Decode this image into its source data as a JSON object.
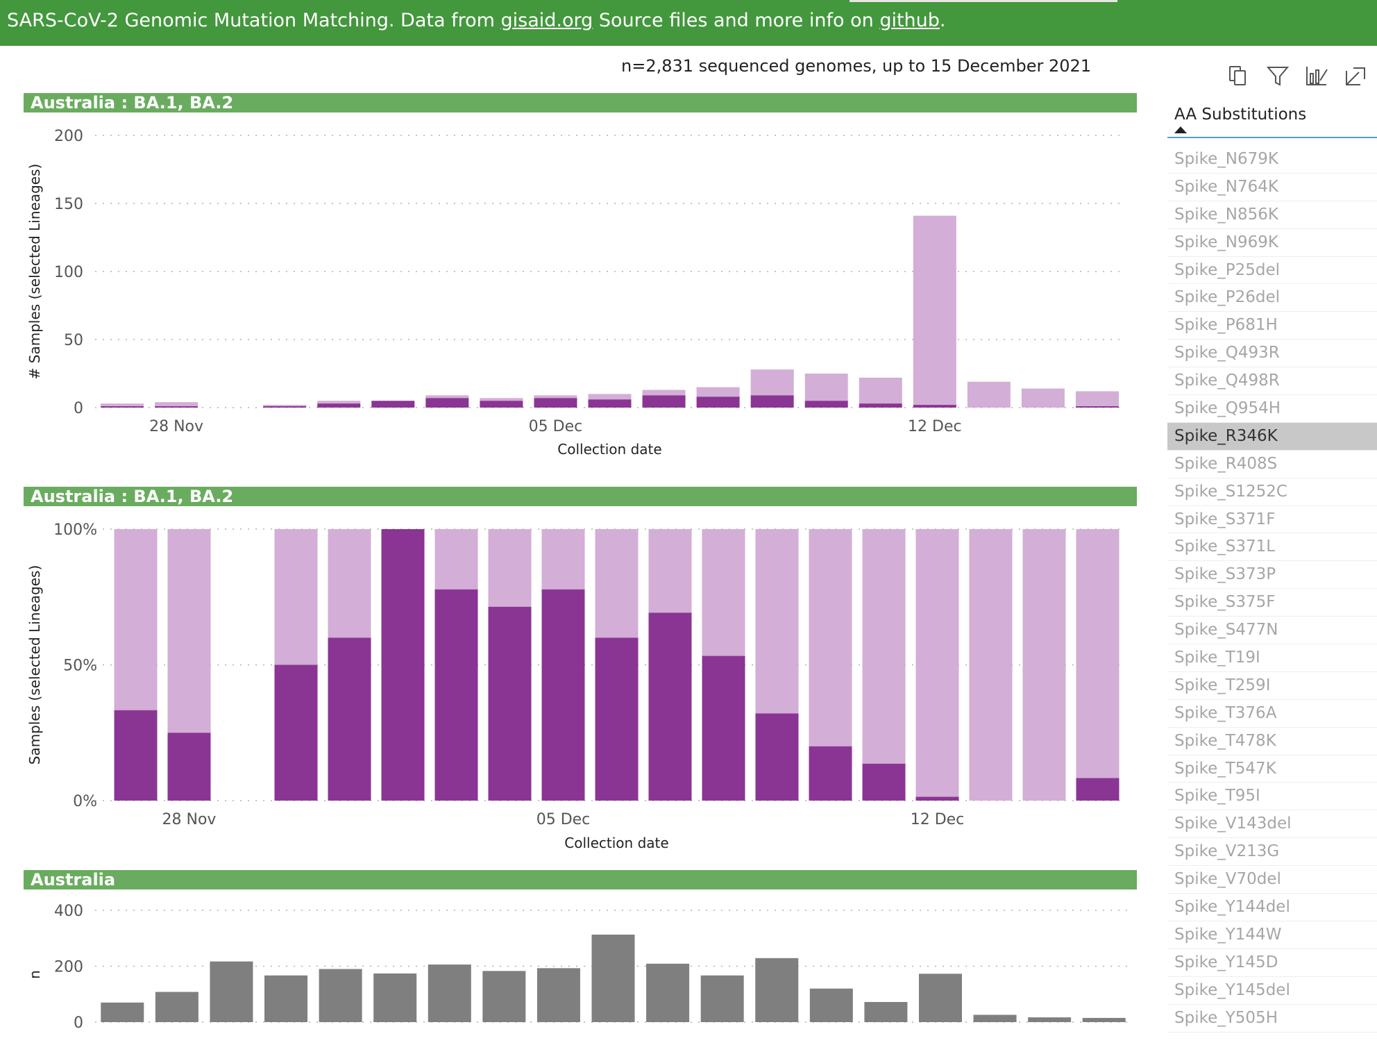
{
  "banner": {
    "text_before": "SARS-CoV-2 Genomic Mutation Matching. Data from ",
    "link1": "gisaid.org",
    "text_middle": " Source files and more info on ",
    "link2": "github",
    "text_after": "."
  },
  "subtitle": "n=2,831 sequenced genomes, up to 15 December 2021",
  "colors": {
    "dark": "#8a3593",
    "light": "#d3aed6",
    "gray": "#7f7f7f",
    "header": "#6aac5f",
    "banner": "#43973d"
  },
  "toolbar": {
    "icons": [
      "copy-icon",
      "filter-icon",
      "focus-mode-icon",
      "expand-icon"
    ]
  },
  "slicer": {
    "title": "AA Substitutions",
    "selected": "Spike_R346K",
    "items": [
      "Spike_N679K",
      "Spike_N764K",
      "Spike_N856K",
      "Spike_N969K",
      "Spike_P25del",
      "Spike_P26del",
      "Spike_P681H",
      "Spike_Q493R",
      "Spike_Q498R",
      "Spike_Q954H",
      "Spike_R346K",
      "Spike_R408S",
      "Spike_S1252C",
      "Spike_S371F",
      "Spike_S371L",
      "Spike_S373P",
      "Spike_S375F",
      "Spike_S477N",
      "Spike_T19I",
      "Spike_T259I",
      "Spike_T376A",
      "Spike_T478K",
      "Spike_T547K",
      "Spike_T95I",
      "Spike_V143del",
      "Spike_V213G",
      "Spike_V70del",
      "Spike_Y144del",
      "Spike_Y144W",
      "Spike_Y145D",
      "Spike_Y145del",
      "Spike_Y505H"
    ]
  },
  "chart_data": [
    {
      "type": "bar",
      "title": "Australia : BA.1, BA.2",
      "stacked": true,
      "x": [
        "2021-11-27",
        "2021-11-28",
        "2021-11-29",
        "2021-11-30",
        "2021-12-01",
        "2021-12-02",
        "2021-12-03",
        "2021-12-04",
        "2021-12-05",
        "2021-12-06",
        "2021-12-07",
        "2021-12-08",
        "2021-12-09",
        "2021-12-10",
        "2021-12-11",
        "2021-12-12",
        "2021-12-13",
        "2021-12-14",
        "2021-12-15"
      ],
      "series": [
        {
          "values": [
            1,
            1,
            0,
            1,
            3,
            5,
            7,
            5,
            7,
            6,
            9,
            8,
            9,
            5,
            3,
            2,
            0,
            0,
            1
          ]
        },
        {
          "values": [
            2,
            3,
            0,
            1,
            2,
            0,
            2,
            2,
            2,
            4,
            4,
            7,
            19,
            20,
            19,
            139,
            19,
            14,
            11
          ]
        }
      ],
      "xticks": [
        "28 Nov",
        "05 Dec",
        "12 Dec"
      ],
      "yticks": [
        "0",
        "50",
        "100",
        "150",
        "200"
      ],
      "ylim": [
        0,
        200
      ],
      "xlabel": "Collection date",
      "ylabel": "# Samples (selected Lineages)"
    },
    {
      "type": "bar",
      "title": "Australia : BA.1, BA.2",
      "stacked": true,
      "percent": true,
      "x": [
        "2021-11-27",
        "2021-11-28",
        "2021-11-29",
        "2021-11-30",
        "2021-12-01",
        "2021-12-02",
        "2021-12-03",
        "2021-12-04",
        "2021-12-05",
        "2021-12-06",
        "2021-12-07",
        "2021-12-08",
        "2021-12-09",
        "2021-12-10",
        "2021-12-11",
        "2021-12-12",
        "2021-12-13",
        "2021-12-14",
        "2021-12-15"
      ],
      "series": [
        {
          "values": [
            33.3,
            25,
            0,
            50,
            60,
            100,
            77.8,
            71.4,
            77.8,
            60,
            69.2,
            53.3,
            32.1,
            20,
            13.6,
            1.4,
            0,
            0,
            8.3
          ]
        },
        {
          "values": [
            66.7,
            75,
            0,
            50,
            40,
            0,
            22.2,
            28.6,
            22.2,
            40,
            30.8,
            46.7,
            67.9,
            80,
            86.4,
            98.6,
            100,
            100,
            91.7
          ]
        }
      ],
      "xticks": [
        "28 Nov",
        "05 Dec",
        "12 Dec"
      ],
      "yticks": [
        "0%",
        "50%",
        "100%"
      ],
      "ylim": [
        0,
        100
      ],
      "xlabel": "Collection date",
      "ylabel": "Samples (selected Lineages)"
    },
    {
      "type": "bar",
      "title": "Australia",
      "x": [
        "2021-11-25",
        "2021-11-26",
        "2021-11-27",
        "2021-11-28",
        "2021-11-29",
        "2021-11-30",
        "2021-12-01",
        "2021-12-02",
        "2021-12-03",
        "2021-12-04",
        "2021-12-05",
        "2021-12-06",
        "2021-12-07",
        "2021-12-08",
        "2021-12-09",
        "2021-12-10",
        "2021-12-11",
        "2021-12-12",
        "2021-12-13"
      ],
      "values": [
        70,
        108,
        217,
        167,
        190,
        174,
        206,
        183,
        193,
        313,
        209,
        167,
        229,
        120,
        72,
        173,
        26,
        17,
        15
      ],
      "yticks": [
        "0",
        "200",
        "400"
      ],
      "ylim": [
        0,
        400
      ],
      "ylabel": "n"
    }
  ]
}
